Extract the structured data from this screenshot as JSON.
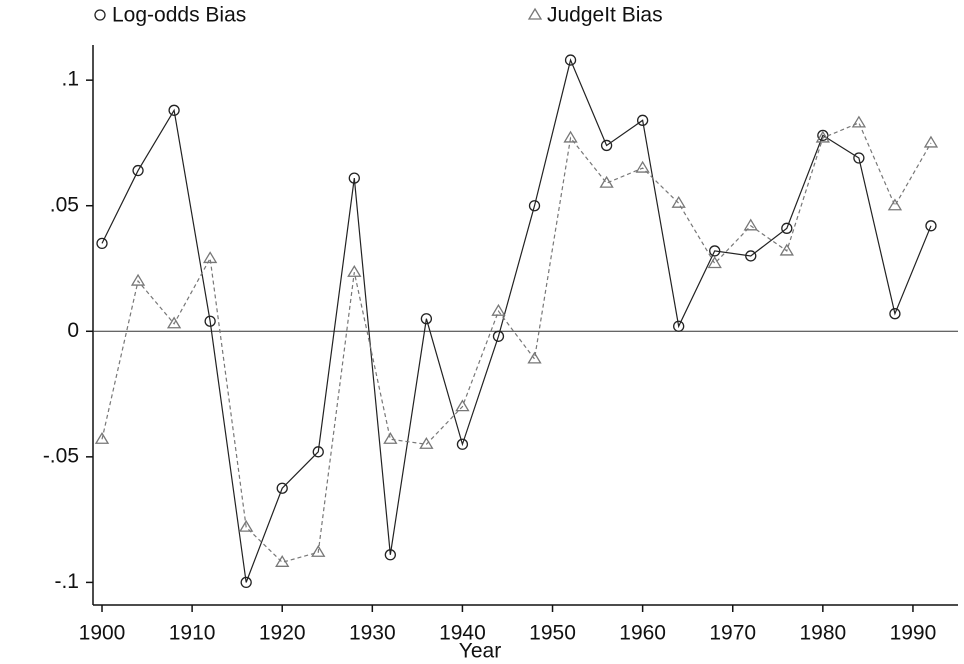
{
  "chart_data": {
    "type": "line",
    "x_label": "Year",
    "x": [
      1900,
      1904,
      1908,
      1912,
      1916,
      1920,
      1924,
      1928,
      1932,
      1936,
      1940,
      1944,
      1948,
      1952,
      1956,
      1960,
      1964,
      1968,
      1972,
      1976,
      1980,
      1984,
      1988,
      1992
    ],
    "series": [
      {
        "name": "Log-odds Bias",
        "color": "#222222",
        "marker": "circle",
        "dash": false,
        "values": [
          0.035,
          0.064,
          0.088,
          0.004,
          -0.1,
          -0.0625,
          -0.048,
          0.061,
          -0.089,
          0.005,
          -0.045,
          -0.002,
          0.05,
          0.108,
          0.074,
          0.084,
          0.002,
          0.032,
          0.03,
          0.041,
          0.078,
          0.069,
          0.007,
          0.042
        ]
      },
      {
        "name": "JudgeIt Bias",
        "color": "#777777",
        "marker": "triangle",
        "dash": true,
        "values": [
          -0.043,
          0.02,
          0.003,
          0.029,
          -0.078,
          -0.092,
          -0.088,
          0.0235,
          -0.043,
          -0.045,
          -0.03,
          0.008,
          -0.011,
          0.077,
          0.059,
          0.065,
          0.051,
          0.027,
          0.042,
          0.032,
          0.077,
          0.083,
          0.05,
          0.075
        ]
      }
    ],
    "xlim": [
      1899,
      1995
    ],
    "ylim": [
      -0.109,
      0.114
    ],
    "xticks": [
      1900,
      1910,
      1920,
      1930,
      1940,
      1950,
      1960,
      1970,
      1980,
      1990
    ],
    "yticks": [
      {
        "value": -0.1,
        "label": "-.1"
      },
      {
        "value": -0.05,
        "label": "-.05"
      },
      0,
      {
        "value": 0.05,
        "label": ".05"
      },
      {
        "value": 0.1,
        "label": ".1"
      }
    ],
    "zero_line": true,
    "legend": "top"
  }
}
